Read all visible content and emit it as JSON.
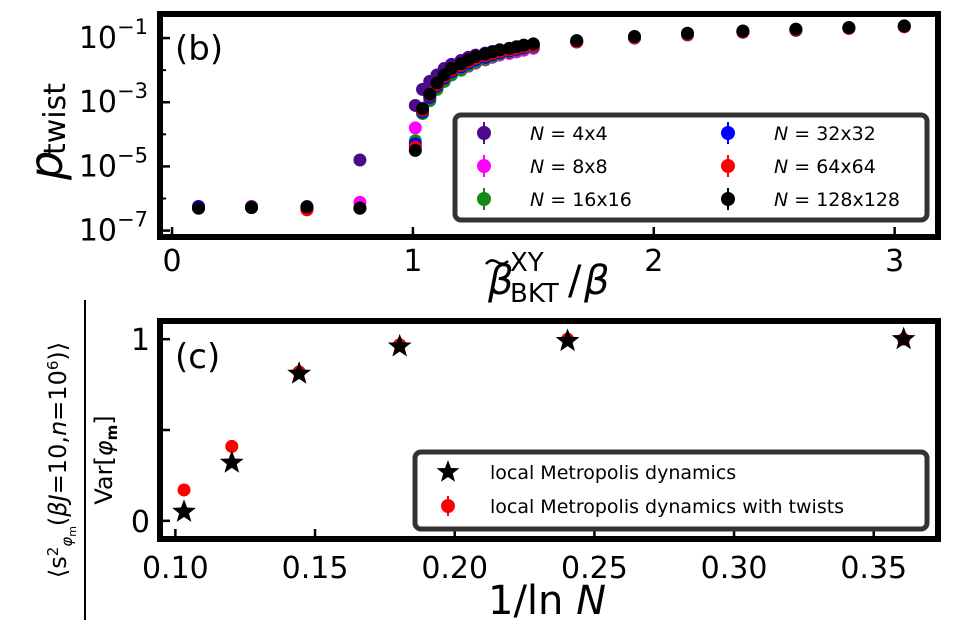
{
  "chart_data": [
    {
      "panel": "(b)",
      "type": "scatter",
      "y_scale": "log",
      "xlabel": "β̃^XY_BKT/β",
      "ylabel": "p_twist",
      "xlim": [
        -0.05,
        3.18
      ],
      "ylim_log10": [
        -7.2,
        -0.25
      ],
      "x_ticks": [
        0,
        1,
        2,
        3
      ],
      "x_tick_labels": [
        "0",
        "1",
        "2",
        "3"
      ],
      "y_ticks_log10": [
        -7,
        -5,
        -3,
        -1
      ],
      "y_tick_labels": [
        {
          "base": "10",
          "exp": "−7"
        },
        {
          "base": "10",
          "exp": "−5"
        },
        {
          "base": "10",
          "exp": "−3"
        },
        {
          "base": "10",
          "exp": "−1"
        }
      ],
      "legend_location": "lower-right",
      "series": [
        {
          "name": "N = 4x4",
          "label_prefix": "N",
          "label_rest": " = 4x4",
          "color": "#4b0a8a",
          "points": [
            [
              0.11,
              -6.28
            ],
            [
              0.33,
              -6.25
            ],
            [
              0.56,
              -6.25
            ],
            [
              0.78,
              -4.8
            ],
            [
              1.01,
              -3.1
            ],
            [
              1.04,
              -2.6
            ],
            [
              1.07,
              -2.35
            ],
            [
              1.1,
              -2.15
            ],
            [
              1.13,
              -1.95
            ],
            [
              1.16,
              -1.82
            ],
            [
              1.2,
              -1.7
            ],
            [
              1.23,
              -1.6
            ],
            [
              1.26,
              -1.53
            ],
            [
              1.3,
              -1.47
            ],
            [
              1.33,
              -1.42
            ],
            [
              1.36,
              -1.37
            ],
            [
              1.4,
              -1.33
            ],
            [
              1.43,
              -1.29
            ],
            [
              1.46,
              -1.25
            ],
            [
              1.5,
              -1.21
            ],
            [
              1.68,
              -1.12
            ],
            [
              1.92,
              -1.0
            ],
            [
              2.14,
              -0.9
            ],
            [
              2.37,
              -0.82
            ],
            [
              2.59,
              -0.76
            ],
            [
              2.81,
              -0.7
            ],
            [
              3.04,
              -0.65
            ]
          ]
        },
        {
          "name": "N = 8x8",
          "label_prefix": "N",
          "label_rest": " = 8x8",
          "color": "#ff00ff",
          "points": [
            [
              0.11,
              -6.25
            ],
            [
              0.33,
              -6.27
            ],
            [
              0.56,
              -6.35
            ],
            [
              0.78,
              -6.12
            ],
            [
              1.01,
              -3.8
            ],
            [
              1.04,
              -3.2
            ],
            [
              1.07,
              -2.85
            ],
            [
              1.1,
              -2.55
            ],
            [
              1.13,
              -2.35
            ],
            [
              1.16,
              -2.15
            ],
            [
              1.2,
              -2.0
            ],
            [
              1.23,
              -1.88
            ],
            [
              1.26,
              -1.78
            ],
            [
              1.3,
              -1.68
            ],
            [
              1.33,
              -1.6
            ],
            [
              1.36,
              -1.53
            ],
            [
              1.4,
              -1.48
            ],
            [
              1.43,
              -1.43
            ],
            [
              1.46,
              -1.38
            ],
            [
              1.5,
              -1.32
            ],
            [
              1.68,
              -1.12
            ],
            [
              1.92,
              -0.98
            ],
            [
              2.14,
              -0.88
            ],
            [
              2.37,
              -0.8
            ],
            [
              2.59,
              -0.74
            ],
            [
              2.81,
              -0.69
            ],
            [
              3.04,
              -0.64
            ]
          ]
        },
        {
          "name": "N = 16x16",
          "label_prefix": "N",
          "label_rest": " = 16x16",
          "color": "#138a13",
          "points": [
            [
              0.11,
              -6.3
            ],
            [
              0.33,
              -6.28
            ],
            [
              0.56,
              -6.28
            ],
            [
              0.78,
              -6.3
            ],
            [
              1.01,
              -4.2
            ],
            [
              1.04,
              -3.35
            ],
            [
              1.07,
              -2.95
            ],
            [
              1.1,
              -2.6
            ],
            [
              1.13,
              -2.35
            ],
            [
              1.16,
              -2.15
            ],
            [
              1.2,
              -2.0
            ],
            [
              1.23,
              -1.86
            ],
            [
              1.26,
              -1.76
            ],
            [
              1.3,
              -1.66
            ],
            [
              1.33,
              -1.58
            ],
            [
              1.36,
              -1.5
            ],
            [
              1.4,
              -1.44
            ],
            [
              1.43,
              -1.38
            ],
            [
              1.46,
              -1.33
            ],
            [
              1.5,
              -1.28
            ],
            [
              1.68,
              -1.12
            ],
            [
              1.92,
              -0.98
            ],
            [
              2.14,
              -0.88
            ],
            [
              2.37,
              -0.8
            ],
            [
              2.59,
              -0.74
            ],
            [
              2.81,
              -0.69
            ],
            [
              3.04,
              -0.64
            ]
          ]
        },
        {
          "name": "N = 32x32",
          "label_prefix": "N",
          "label_rest": " = 32x32",
          "color": "#0000ff",
          "points": [
            [
              0.11,
              -6.25
            ],
            [
              0.33,
              -6.28
            ],
            [
              0.56,
              -6.3
            ],
            [
              0.78,
              -6.3
            ],
            [
              1.01,
              -4.3
            ],
            [
              1.04,
              -3.3
            ],
            [
              1.07,
              -2.85
            ],
            [
              1.1,
              -2.5
            ],
            [
              1.13,
              -2.25
            ],
            [
              1.16,
              -2.05
            ],
            [
              1.2,
              -1.9
            ],
            [
              1.23,
              -1.78
            ],
            [
              1.26,
              -1.68
            ],
            [
              1.3,
              -1.6
            ],
            [
              1.33,
              -1.52
            ],
            [
              1.36,
              -1.46
            ],
            [
              1.4,
              -1.4
            ],
            [
              1.43,
              -1.35
            ],
            [
              1.46,
              -1.3
            ],
            [
              1.5,
              -1.25
            ],
            [
              1.68,
              -1.12
            ],
            [
              1.92,
              -0.98
            ],
            [
              2.14,
              -0.88
            ],
            [
              2.37,
              -0.8
            ],
            [
              2.59,
              -0.74
            ],
            [
              2.81,
              -0.69
            ],
            [
              3.04,
              -0.64
            ]
          ]
        },
        {
          "name": "N = 64x64",
          "label_prefix": "N",
          "label_rest": " = 64x64",
          "color": "#ff0000",
          "points": [
            [
              0.11,
              -6.3
            ],
            [
              0.33,
              -6.28
            ],
            [
              0.56,
              -6.35
            ],
            [
              0.78,
              -6.3
            ],
            [
              1.01,
              -4.4
            ],
            [
              1.04,
              -3.25
            ],
            [
              1.07,
              -2.78
            ],
            [
              1.1,
              -2.45
            ],
            [
              1.13,
              -2.2
            ],
            [
              1.16,
              -2.0
            ],
            [
              1.2,
              -1.85
            ],
            [
              1.23,
              -1.73
            ],
            [
              1.26,
              -1.63
            ],
            [
              1.3,
              -1.55
            ],
            [
              1.33,
              -1.48
            ],
            [
              1.36,
              -1.42
            ],
            [
              1.4,
              -1.37
            ],
            [
              1.43,
              -1.32
            ],
            [
              1.46,
              -1.27
            ],
            [
              1.5,
              -1.23
            ],
            [
              1.68,
              -1.12
            ],
            [
              1.92,
              -0.98
            ],
            [
              2.14,
              -0.88
            ],
            [
              2.37,
              -0.8
            ],
            [
              2.59,
              -0.74
            ],
            [
              2.81,
              -0.69
            ],
            [
              3.04,
              -0.64
            ]
          ]
        },
        {
          "name": "N = 128x128",
          "label_prefix": "N",
          "label_rest": " = 128x128",
          "color": "#000000",
          "points": [
            [
              0.11,
              -6.3
            ],
            [
              0.33,
              -6.28
            ],
            [
              0.56,
              -6.27
            ],
            [
              0.78,
              -6.3
            ],
            [
              1.01,
              -4.5
            ],
            [
              1.04,
              -3.2
            ],
            [
              1.07,
              -2.75
            ],
            [
              1.1,
              -2.4
            ],
            [
              1.13,
              -2.15
            ],
            [
              1.16,
              -1.95
            ],
            [
              1.2,
              -1.8
            ],
            [
              1.23,
              -1.68
            ],
            [
              1.26,
              -1.58
            ],
            [
              1.3,
              -1.5
            ],
            [
              1.33,
              -1.43
            ],
            [
              1.36,
              -1.37
            ],
            [
              1.4,
              -1.32
            ],
            [
              1.43,
              -1.27
            ],
            [
              1.46,
              -1.22
            ],
            [
              1.5,
              -1.18
            ],
            [
              1.68,
              -1.08
            ],
            [
              1.92,
              -0.95
            ],
            [
              2.14,
              -0.85
            ],
            [
              2.37,
              -0.78
            ],
            [
              2.59,
              -0.72
            ],
            [
              2.81,
              -0.67
            ],
            [
              3.04,
              -0.62
            ]
          ]
        }
      ]
    },
    {
      "panel": "(c)",
      "type": "scatter",
      "xlabel": "1/ln N",
      "ylabel_numerator": "⟨s²_φm(βJ=10, n=10⁶)⟩",
      "ylabel_denominator": "Var[φm]",
      "xlim": [
        0.0945,
        0.373
      ],
      "ylim": [
        -0.1,
        1.1
      ],
      "x_ticks": [
        0.1,
        0.15,
        0.2,
        0.25,
        0.3,
        0.35
      ],
      "x_tick_labels": [
        "0.10",
        "0.15",
        "0.20",
        "0.25",
        "0.30",
        "0.35"
      ],
      "y_ticks": [
        0,
        0.5,
        1
      ],
      "y_tick_labels": [
        "0",
        "",
        "1"
      ],
      "legend_location": "lower-right",
      "series": [
        {
          "name": "local Metropolis dynamics",
          "marker": "star",
          "color": "#000000",
          "x": [
            0.1031,
            0.1202,
            0.1443,
            0.1803,
            0.2404,
            0.3607
          ],
          "y": [
            0.05,
            0.32,
            0.81,
            0.96,
            0.99,
            1.0
          ]
        },
        {
          "name": "local Metropolis dynamics with twists",
          "marker": "circle",
          "color": "#ff0000",
          "x": [
            0.1031,
            0.1202,
            0.1443,
            0.1803,
            0.2404,
            0.3607
          ],
          "y": [
            0.17,
            0.41,
            0.82,
            0.97,
            1.0,
            1.0
          ]
        }
      ]
    }
  ]
}
